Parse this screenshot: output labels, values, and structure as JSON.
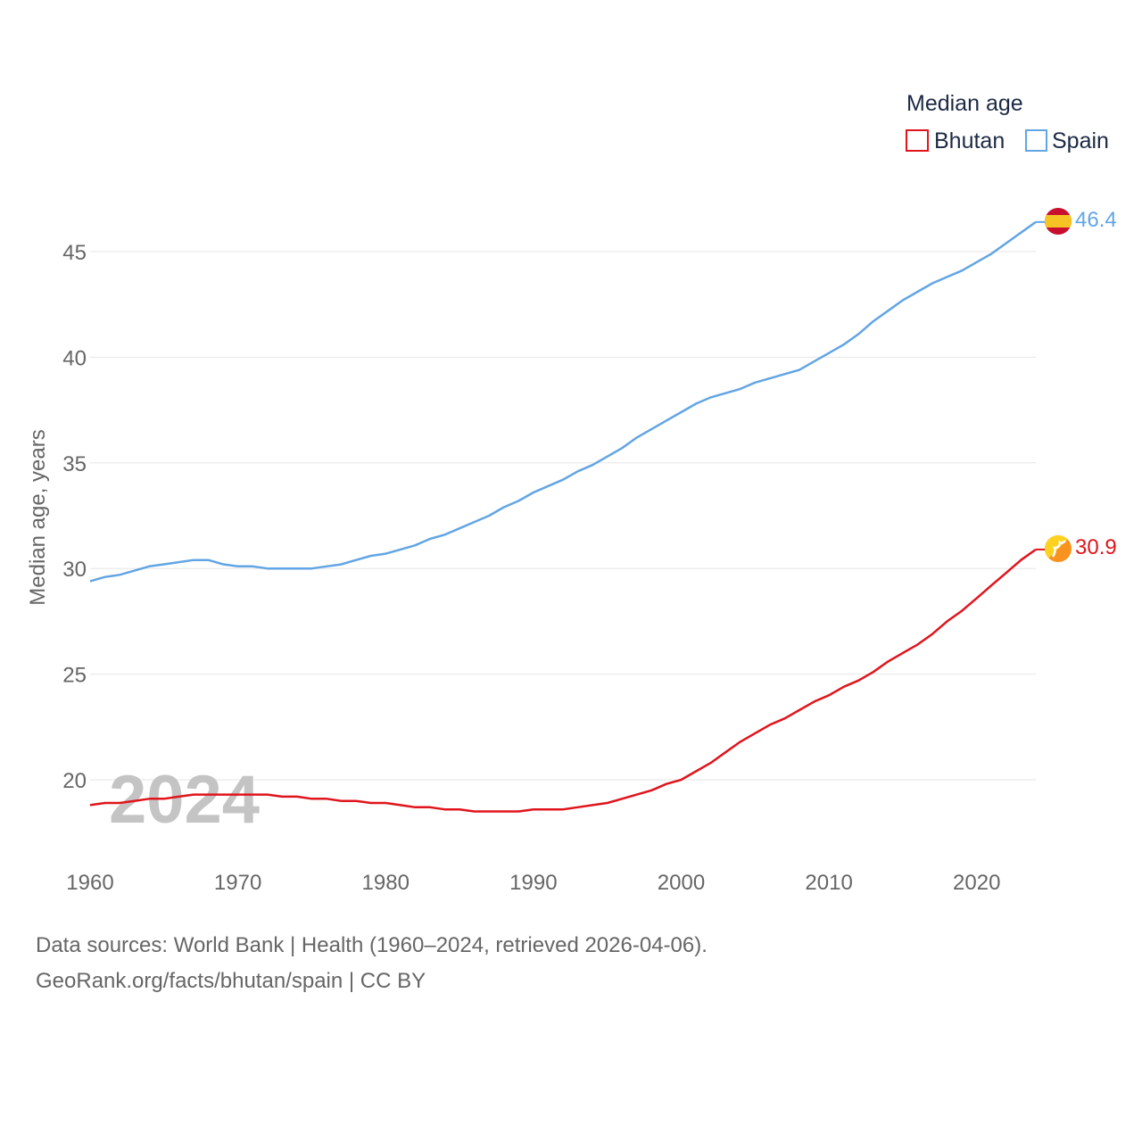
{
  "chart_data": {
    "type": "line",
    "legend_title": "Median age",
    "ylabel": "Median age, years",
    "xlabel": "",
    "xlim": [
      1960,
      2024
    ],
    "ylim": [
      17,
      48
    ],
    "x_ticks": [
      1960,
      1970,
      1980,
      1990,
      2000,
      2010,
      2020
    ],
    "y_ticks": [
      20,
      25,
      30,
      35,
      40,
      45
    ],
    "legend_position": "top-right",
    "watermark_year": "2024",
    "years": [
      1960,
      1961,
      1962,
      1963,
      1964,
      1965,
      1966,
      1967,
      1968,
      1969,
      1970,
      1971,
      1972,
      1973,
      1974,
      1975,
      1976,
      1977,
      1978,
      1979,
      1980,
      1981,
      1982,
      1983,
      1984,
      1985,
      1986,
      1987,
      1988,
      1989,
      1990,
      1991,
      1992,
      1993,
      1994,
      1995,
      1996,
      1997,
      1998,
      1999,
      2000,
      2001,
      2002,
      2003,
      2004,
      2005,
      2006,
      2007,
      2008,
      2009,
      2010,
      2011,
      2012,
      2013,
      2014,
      2015,
      2016,
      2017,
      2018,
      2019,
      2020,
      2021,
      2022,
      2023,
      2024
    ],
    "series": [
      {
        "name": "Bhutan",
        "color": "#e0141c",
        "end_label": "30.9",
        "values": [
          18.8,
          18.9,
          18.9,
          19.0,
          19.1,
          19.1,
          19.2,
          19.3,
          19.3,
          19.3,
          19.3,
          19.3,
          19.3,
          19.2,
          19.2,
          19.1,
          19.1,
          19.0,
          19.0,
          18.9,
          18.9,
          18.8,
          18.7,
          18.7,
          18.6,
          18.6,
          18.5,
          18.5,
          18.5,
          18.5,
          18.6,
          18.6,
          18.6,
          18.7,
          18.8,
          18.9,
          19.1,
          19.3,
          19.5,
          19.8,
          20.0,
          20.4,
          20.8,
          21.3,
          21.8,
          22.2,
          22.6,
          22.9,
          23.3,
          23.7,
          24.0,
          24.4,
          24.7,
          25.1,
          25.6,
          26.0,
          26.4,
          26.9,
          27.5,
          28.0,
          28.6,
          29.2,
          29.8,
          30.4,
          30.9
        ]
      },
      {
        "name": "Spain",
        "color": "#62a5e4",
        "end_label": "46.4",
        "values": [
          29.4,
          29.6,
          29.7,
          29.9,
          30.1,
          30.2,
          30.3,
          30.4,
          30.4,
          30.2,
          30.1,
          30.1,
          30.0,
          30.0,
          30.0,
          30.0,
          30.1,
          30.2,
          30.4,
          30.6,
          30.7,
          30.9,
          31.1,
          31.4,
          31.6,
          31.9,
          32.2,
          32.5,
          32.9,
          33.2,
          33.6,
          33.9,
          34.2,
          34.6,
          34.9,
          35.3,
          35.7,
          36.2,
          36.6,
          37.0,
          37.4,
          37.8,
          38.1,
          38.3,
          38.5,
          38.8,
          39.0,
          39.2,
          39.4,
          39.8,
          40.2,
          40.6,
          41.1,
          41.7,
          42.2,
          42.7,
          43.1,
          43.5,
          43.8,
          44.1,
          44.5,
          44.9,
          45.4,
          45.9,
          46.4
        ]
      }
    ]
  },
  "footer": {
    "line1": "Data sources: World Bank | Health (1960–2024, retrieved 2026-04-06).",
    "line2": "GeoRank.org/facts/bhutan/spain | CC BY"
  }
}
